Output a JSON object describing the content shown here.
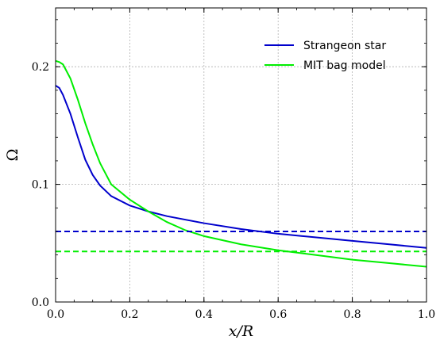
{
  "chart_data": {
    "type": "line",
    "title": "",
    "xlabel": "x/R",
    "ylabel": "Ω",
    "xlim": [
      0,
      1
    ],
    "ylim": [
      0,
      0.25
    ],
    "grid": true,
    "legend_position": "top-right",
    "x_ticks": [
      0.0,
      0.2,
      0.4,
      0.6,
      0.8,
      1.0
    ],
    "x_tick_labels": [
      "0.0",
      "0.2",
      "0.4",
      "0.6",
      "0.8",
      "1.0"
    ],
    "y_ticks": [
      0.0,
      0.1,
      0.2
    ],
    "y_tick_labels": [
      "0.0",
      "0.1",
      "0.2"
    ],
    "series": [
      {
        "name": "Strangeon star",
        "color": "#0000cc",
        "style": "solid",
        "x": [
          0.0,
          0.01,
          0.02,
          0.04,
          0.06,
          0.08,
          0.1,
          0.12,
          0.15,
          0.2,
          0.25,
          0.3,
          0.4,
          0.5,
          0.6,
          0.7,
          0.8,
          0.9,
          1.0
        ],
        "y": [
          0.184,
          0.182,
          0.176,
          0.16,
          0.14,
          0.121,
          0.108,
          0.099,
          0.09,
          0.082,
          0.077,
          0.073,
          0.067,
          0.062,
          0.058,
          0.055,
          0.052,
          0.049,
          0.046
        ]
      },
      {
        "name": "MIT bag model",
        "color": "#00ee00",
        "style": "solid",
        "x": [
          0.0,
          0.01,
          0.02,
          0.04,
          0.06,
          0.08,
          0.1,
          0.12,
          0.15,
          0.2,
          0.25,
          0.3,
          0.35,
          0.4,
          0.5,
          0.6,
          0.7,
          0.8,
          0.9,
          1.0
        ],
        "y": [
          0.205,
          0.204,
          0.202,
          0.19,
          0.172,
          0.152,
          0.134,
          0.118,
          0.1,
          0.087,
          0.077,
          0.068,
          0.061,
          0.056,
          0.049,
          0.044,
          0.04,
          0.036,
          0.033,
          0.03
        ]
      },
      {
        "color": "#0000cc",
        "style": "dashed",
        "x": [
          0.0,
          1.0
        ],
        "y": [
          0.06,
          0.06
        ]
      },
      {
        "color": "#00ee00",
        "style": "dashed",
        "x": [
          0.0,
          1.0
        ],
        "y": [
          0.043,
          0.043
        ]
      }
    ]
  }
}
